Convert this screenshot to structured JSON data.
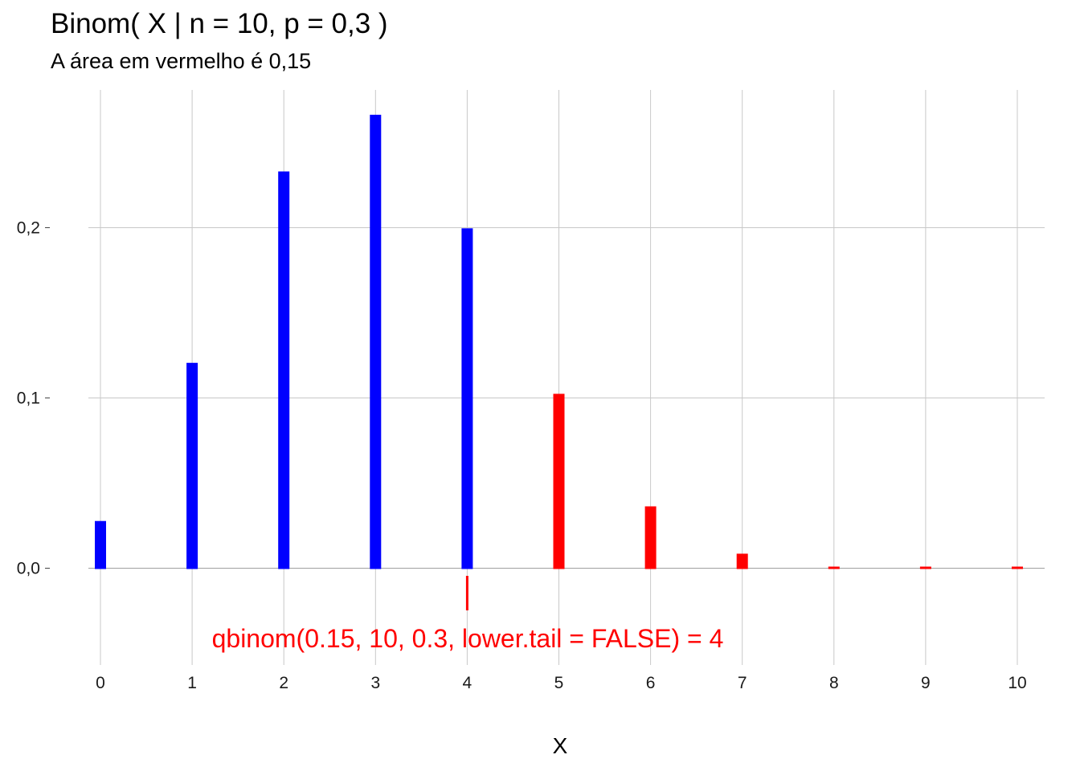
{
  "chart_data": {
    "type": "bar",
    "title": "Binom( X | n = 10, p = 0,3 )",
    "subtitle": "A área em vermelho é 0,15",
    "xlabel": "X",
    "ylabel": "",
    "x": [
      0,
      1,
      2,
      3,
      4,
      5,
      6,
      7,
      8,
      9,
      10
    ],
    "values": [
      0.0282,
      0.1211,
      0.2335,
      0.2668,
      0.2001,
      0.1029,
      0.0368,
      0.009,
      0.0014,
      0.0001,
      0.0
    ],
    "highlight_from_x": 5,
    "ylim": [
      -0.06,
      0.28
    ],
    "xlim": [
      -0.1,
      10.3
    ],
    "y_ticks": [
      0.0,
      0.1,
      0.2
    ],
    "y_tick_labels": [
      "0,0",
      "0,1",
      "0,2"
    ],
    "x_tick_labels": [
      "0",
      "1",
      "2",
      "3",
      "4",
      "5",
      "6",
      "7",
      "8",
      "9",
      "10"
    ],
    "grid": true,
    "annotation": {
      "text": "qbinom(0.15, 10, 0.3, lower.tail = FALSE) = 4",
      "x": 4
    },
    "colors": {
      "base": "#0000ff",
      "highlight": "#ff0000",
      "grid": "#c8c8c8",
      "zero_line": "#a0a0a0",
      "annotation": "#ff0000"
    }
  }
}
